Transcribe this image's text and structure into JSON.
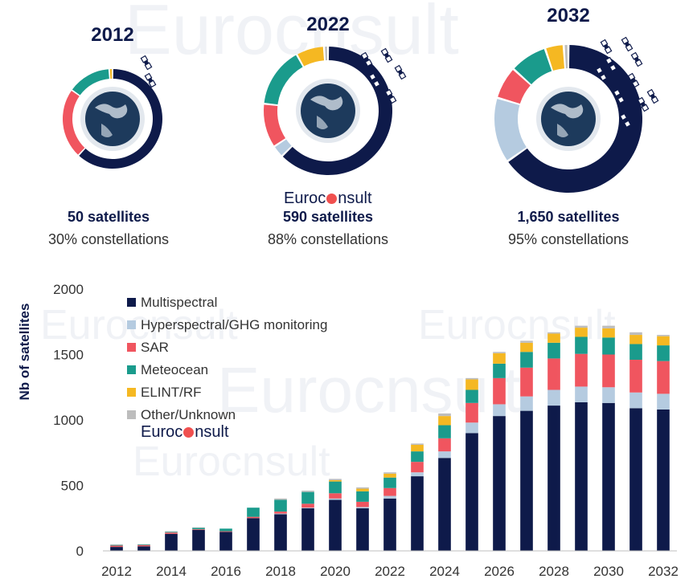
{
  "brand": {
    "logo_left": "Euroc",
    "logo_right": "nsult"
  },
  "donuts": [
    {
      "year": "2012",
      "satellites": "50 satellites",
      "constellations": "30% constellations",
      "segments": [
        {
          "name": "Multispectral",
          "value": 0.57
        },
        {
          "name": "Hyperspectral/GHG monitoring",
          "value": 0.0
        },
        {
          "name": "SAR",
          "value": 0.21
        },
        {
          "name": "Meteocean",
          "value": 0.13
        },
        {
          "name": "ELINT/RF",
          "value": 0.01
        },
        {
          "name": "Other/Unknown",
          "value": 0.0
        }
      ]
    },
    {
      "year": "2022",
      "satellites": "590 satellites",
      "constellations": "88% constellations",
      "segments": [
        {
          "name": "Multispectral",
          "value": 0.62
        },
        {
          "name": "Hyperspectral/GHG monitoring",
          "value": 0.03
        },
        {
          "name": "SAR",
          "value": 0.11
        },
        {
          "name": "Meteocean",
          "value": 0.15
        },
        {
          "name": "ELINT/RF",
          "value": 0.07
        },
        {
          "name": "Other/Unknown",
          "value": 0.01
        }
      ]
    },
    {
      "year": "2032",
      "satellites": "1,650 satellites",
      "constellations": "95% constellations",
      "segments": [
        {
          "name": "Multispectral",
          "value": 0.64
        },
        {
          "name": "Hyperspectral/GHG monitoring",
          "value": 0.14
        },
        {
          "name": "SAR",
          "value": 0.07
        },
        {
          "name": "Meteocean",
          "value": 0.08
        },
        {
          "name": "ELINT/RF",
          "value": 0.04
        },
        {
          "name": "Other/Unknown",
          "value": 0.01
        }
      ]
    }
  ],
  "chart_data": {
    "type": "bar",
    "stacked": true,
    "ylabel": "Nb of satellites",
    "xlabel": "",
    "ylim": [
      0,
      2000
    ],
    "yticks": [
      0,
      500,
      1000,
      1500,
      2000
    ],
    "xticks": [
      "2012",
      "2014",
      "2016",
      "2018",
      "2020",
      "2022",
      "2024",
      "2026",
      "2028",
      "2030",
      "2032"
    ],
    "grid": false,
    "legend_position": "top-left",
    "categories": [
      "2012",
      "2013",
      "2014",
      "2015",
      "2016",
      "2017",
      "2018",
      "2019",
      "2020",
      "2021",
      "2022",
      "2023",
      "2024",
      "2025",
      "2026",
      "2027",
      "2028",
      "2029",
      "2030",
      "2031",
      "2032"
    ],
    "series": [
      {
        "name": "Multispectral",
        "color": "#0e1a4a",
        "values": [
          30,
          35,
          130,
          160,
          145,
          250,
          280,
          325,
          390,
          325,
          400,
          570,
          710,
          900,
          1030,
          1070,
          1110,
          1135,
          1130,
          1090,
          1080
        ]
      },
      {
        "name": "Hyperspectral/GHG monitoring",
        "color": "#b5cbe0",
        "values": [
          0,
          0,
          0,
          0,
          0,
          0,
          5,
          5,
          10,
          10,
          20,
          30,
          50,
          80,
          90,
          110,
          120,
          120,
          120,
          120,
          120
        ]
      },
      {
        "name": "SAR",
        "color": "#f0555f",
        "values": [
          10,
          10,
          10,
          5,
          5,
          10,
          15,
          30,
          40,
          40,
          60,
          80,
          100,
          150,
          200,
          220,
          240,
          250,
          250,
          250,
          250
        ]
      },
      {
        "name": "Meteocean",
        "color": "#1a9b8c",
        "values": [
          5,
          5,
          5,
          10,
          20,
          70,
          90,
          90,
          90,
          80,
          80,
          80,
          100,
          100,
          110,
          120,
          120,
          130,
          130,
          120,
          120
        ]
      },
      {
        "name": "ELINT/RF",
        "color": "#f5b822",
        "values": [
          0,
          0,
          0,
          0,
          0,
          0,
          0,
          0,
          10,
          20,
          30,
          50,
          70,
          80,
          80,
          70,
          70,
          70,
          70,
          70,
          70
        ]
      },
      {
        "name": "Other/Unknown",
        "color": "#bdbdbd",
        "values": [
          5,
          0,
          5,
          5,
          0,
          0,
          10,
          10,
          10,
          10,
          10,
          10,
          20,
          10,
          10,
          15,
          10,
          15,
          20,
          20,
          10
        ]
      }
    ]
  }
}
